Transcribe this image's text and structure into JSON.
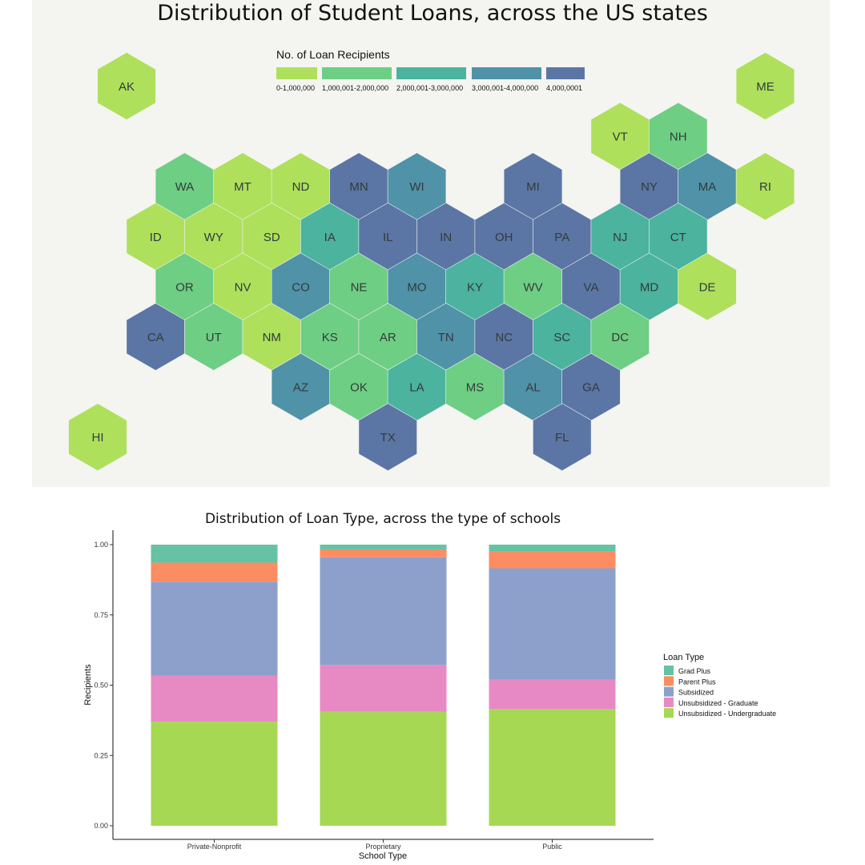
{
  "chart_data": [
    {
      "type": "hexbin-map",
      "title": "Distribution of Student Loans, across the US states",
      "legend": {
        "title": "No. of Loan Recipients",
        "bins": [
          {
            "label": "0-1,000,000",
            "color": "#aee05c"
          },
          {
            "label": "1,000,001-2,000,000",
            "color": "#6ece84"
          },
          {
            "label": "2,000,001-3,000,000",
            "color": "#4bb39e"
          },
          {
            "label": "3,000,001-4,000,000",
            "color": "#5092a8"
          },
          {
            "label": "4,000,0001",
            "color": "#5b76a5"
          }
        ]
      },
      "states": [
        {
          "abbr": "AK",
          "bin": 0,
          "row": 0,
          "col": 0
        },
        {
          "abbr": "ME",
          "bin": 0,
          "row": 0,
          "col": 11
        },
        {
          "abbr": "VT",
          "bin": 0,
          "row": 1,
          "col": 9
        },
        {
          "abbr": "NH",
          "bin": 1,
          "row": 1,
          "col": 10
        },
        {
          "abbr": "WA",
          "bin": 1,
          "row": 2,
          "col": 1
        },
        {
          "abbr": "MT",
          "bin": 0,
          "row": 2,
          "col": 2
        },
        {
          "abbr": "ND",
          "bin": 0,
          "row": 2,
          "col": 3
        },
        {
          "abbr": "MN",
          "bin": 4,
          "row": 2,
          "col": 4
        },
        {
          "abbr": "WI",
          "bin": 3,
          "row": 2,
          "col": 5
        },
        {
          "abbr": "MI",
          "bin": 4,
          "row": 2,
          "col": 7
        },
        {
          "abbr": "NY",
          "bin": 4,
          "row": 2,
          "col": 9
        },
        {
          "abbr": "MA",
          "bin": 3,
          "row": 2,
          "col": 10
        },
        {
          "abbr": "RI",
          "bin": 0,
          "row": 2,
          "col": 11
        },
        {
          "abbr": "ID",
          "bin": 0,
          "row": 3,
          "col": 1
        },
        {
          "abbr": "WY",
          "bin": 0,
          "row": 3,
          "col": 2
        },
        {
          "abbr": "SD",
          "bin": 0,
          "row": 3,
          "col": 3
        },
        {
          "abbr": "IA",
          "bin": 2,
          "row": 3,
          "col": 4
        },
        {
          "abbr": "IL",
          "bin": 4,
          "row": 3,
          "col": 5
        },
        {
          "abbr": "IN",
          "bin": 4,
          "row": 3,
          "col": 6
        },
        {
          "abbr": "OH",
          "bin": 4,
          "row": 3,
          "col": 7
        },
        {
          "abbr": "PA",
          "bin": 4,
          "row": 3,
          "col": 8
        },
        {
          "abbr": "NJ",
          "bin": 2,
          "row": 3,
          "col": 9
        },
        {
          "abbr": "CT",
          "bin": 2,
          "row": 3,
          "col": 10
        },
        {
          "abbr": "OR",
          "bin": 1,
          "row": 4,
          "col": 1
        },
        {
          "abbr": "NV",
          "bin": 0,
          "row": 4,
          "col": 2
        },
        {
          "abbr": "CO",
          "bin": 3,
          "row": 4,
          "col": 3
        },
        {
          "abbr": "NE",
          "bin": 1,
          "row": 4,
          "col": 4
        },
        {
          "abbr": "MO",
          "bin": 3,
          "row": 4,
          "col": 5
        },
        {
          "abbr": "KY",
          "bin": 2,
          "row": 4,
          "col": 6
        },
        {
          "abbr": "WV",
          "bin": 1,
          "row": 4,
          "col": 7
        },
        {
          "abbr": "VA",
          "bin": 4,
          "row": 4,
          "col": 8
        },
        {
          "abbr": "MD",
          "bin": 2,
          "row": 4,
          "col": 9
        },
        {
          "abbr": "DE",
          "bin": 0,
          "row": 4,
          "col": 10
        },
        {
          "abbr": "CA",
          "bin": 4,
          "row": 5,
          "col": 1
        },
        {
          "abbr": "UT",
          "bin": 1,
          "row": 5,
          "col": 2
        },
        {
          "abbr": "NM",
          "bin": 0,
          "row": 5,
          "col": 3
        },
        {
          "abbr": "KS",
          "bin": 1,
          "row": 5,
          "col": 4
        },
        {
          "abbr": "AR",
          "bin": 1,
          "row": 5,
          "col": 5
        },
        {
          "abbr": "TN",
          "bin": 3,
          "row": 5,
          "col": 6
        },
        {
          "abbr": "NC",
          "bin": 4,
          "row": 5,
          "col": 7
        },
        {
          "abbr": "SC",
          "bin": 2,
          "row": 5,
          "col": 8
        },
        {
          "abbr": "DC",
          "bin": 1,
          "row": 5,
          "col": 9
        },
        {
          "abbr": "AZ",
          "bin": 3,
          "row": 6,
          "col": 3
        },
        {
          "abbr": "OK",
          "bin": 1,
          "row": 6,
          "col": 4
        },
        {
          "abbr": "LA",
          "bin": 2,
          "row": 6,
          "col": 5
        },
        {
          "abbr": "MS",
          "bin": 1,
          "row": 6,
          "col": 6
        },
        {
          "abbr": "AL",
          "bin": 3,
          "row": 6,
          "col": 7
        },
        {
          "abbr": "GA",
          "bin": 4,
          "row": 6,
          "col": 8
        },
        {
          "abbr": "HI",
          "bin": 0,
          "row": 7,
          "col": 0
        },
        {
          "abbr": "TX",
          "bin": 4,
          "row": 7,
          "col": 5
        },
        {
          "abbr": "FL",
          "bin": 4,
          "row": 7,
          "col": 8
        }
      ]
    },
    {
      "type": "bar",
      "stacked": true,
      "title": "Distribution of Loan Type, across the type of schools",
      "xlabel": "School Type",
      "ylabel": "Recipients",
      "ylim": [
        0,
        1
      ],
      "yticks": [
        "0.00",
        "0.25",
        "0.50",
        "0.75",
        "1.00"
      ],
      "categories": [
        "Private-Nonprofit",
        "Proprietary",
        "Public"
      ],
      "legend_title": "Loan Type",
      "legend_position": "right",
      "grid": false,
      "series": [
        {
          "name": "Unsubsidized - Undergraduate",
          "color": "#a6d854",
          "values": [
            0.37,
            0.405,
            0.415
          ]
        },
        {
          "name": "Unsubsidized - Graduate",
          "color": "#e78ac3",
          "values": [
            0.163,
            0.167,
            0.104
          ]
        },
        {
          "name": "Subsidized",
          "color": "#8da0cb",
          "values": [
            0.335,
            0.383,
            0.397
          ]
        },
        {
          "name": "Parent Plus",
          "color": "#fc8d62",
          "values": [
            0.068,
            0.028,
            0.06
          ]
        },
        {
          "name": "Grad Plus",
          "color": "#66c2a5",
          "values": [
            0.064,
            0.017,
            0.024
          ]
        }
      ]
    }
  ]
}
